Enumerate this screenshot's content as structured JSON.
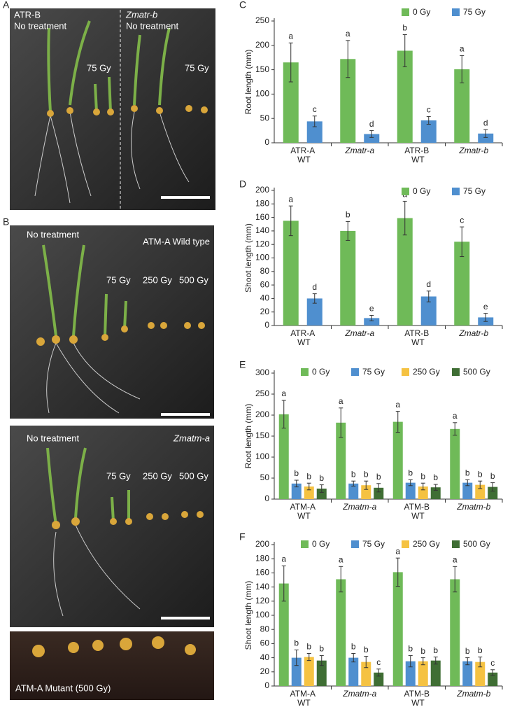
{
  "panels": {
    "A": {
      "letter": "A",
      "texts": [
        "ATR-B",
        "No treatment",
        "Zmatr-b",
        "No treatment",
        "75 Gy",
        "75 Gy"
      ]
    },
    "B": {
      "letter": "B",
      "texts": [
        "No treatment",
        "ATM-A Wild type",
        "75 Gy",
        "250 Gy",
        "500 Gy",
        "No treatment",
        "Zmatm-a",
        "75 Gy",
        "250 Gy",
        "500 Gy",
        "ATM-A Mutant (500 Gy)"
      ]
    }
  },
  "chart_data": [
    {
      "type": "bar",
      "panel": "C",
      "y_label": "Root length (mm)",
      "categories": [
        "ATR-A WT",
        "Zmatr-a",
        "ATR-B WT",
        "Zmatr-b"
      ],
      "category_style": [
        "normal",
        "italic",
        "normal",
        "italic"
      ],
      "ylim": [
        0,
        250
      ],
      "yticks": [
        0,
        50,
        100,
        150,
        200,
        250
      ],
      "series": [
        {
          "name": "0 Gy",
          "color": "#6fba58",
          "values": [
            165,
            172,
            189,
            151
          ],
          "errors": [
            40,
            38,
            33,
            28
          ],
          "letters": [
            "a",
            "a",
            "b",
            "a"
          ]
        },
        {
          "name": "75 Gy",
          "color": "#4f8fcf",
          "values": [
            44,
            18,
            46,
            19
          ],
          "errors": [
            11,
            7,
            8,
            8
          ],
          "letters": [
            "c",
            "d",
            "c",
            "d"
          ]
        }
      ]
    },
    {
      "type": "bar",
      "panel": "D",
      "y_label": "Shoot length (mm)",
      "categories": [
        "ATR-A WT",
        "Zmatr-a",
        "ATR-B WT",
        "Zmatr-b"
      ],
      "category_style": [
        "normal",
        "italic",
        "normal",
        "italic"
      ],
      "ylim": [
        0,
        200
      ],
      "yticks": [
        0,
        20,
        40,
        60,
        80,
        100,
        120,
        140,
        160,
        180,
        200
      ],
      "series": [
        {
          "name": "0 Gy",
          "color": "#6fba58",
          "values": [
            155,
            140,
            159,
            124
          ],
          "errors": [
            22,
            14,
            25,
            22
          ],
          "letters": [
            "a",
            "b",
            "a",
            "c"
          ]
        },
        {
          "name": "75 Gy",
          "color": "#4f8fcf",
          "values": [
            40,
            11,
            43,
            12
          ],
          "errors": [
            7,
            4,
            8,
            6
          ],
          "letters": [
            "d",
            "e",
            "d",
            "e"
          ]
        }
      ]
    },
    {
      "type": "bar",
      "panel": "E",
      "y_label": "Root length (mm)",
      "categories": [
        "ATM-A WT",
        "Zmatm-a",
        "ATM-B WT",
        "Zmatm-b"
      ],
      "category_style": [
        "normal",
        "italic",
        "normal",
        "italic"
      ],
      "ylim": [
        0,
        300
      ],
      "yticks": [
        0,
        50,
        100,
        150,
        200,
        250,
        300
      ],
      "series": [
        {
          "name": "0 Gy",
          "color": "#6fba58",
          "values": [
            202,
            182,
            184,
            167
          ],
          "errors": [
            33,
            35,
            25,
            15
          ],
          "letters": [
            "a",
            "a",
            "a",
            "a"
          ]
        },
        {
          "name": "75 Gy",
          "color": "#4f8fcf",
          "values": [
            37,
            37,
            39,
            39
          ],
          "errors": [
            8,
            6,
            7,
            7
          ],
          "letters": [
            "b",
            "b",
            "b",
            "b"
          ]
        },
        {
          "name": "250 Gy",
          "color": "#f5c242",
          "values": [
            30,
            33,
            30,
            34
          ],
          "errors": [
            8,
            10,
            8,
            9
          ],
          "letters": [
            "b",
            "b",
            "b",
            "b"
          ]
        },
        {
          "name": "500 Gy",
          "color": "#3f6e34",
          "values": [
            25,
            27,
            28,
            29
          ],
          "errors": [
            9,
            10,
            7,
            10
          ],
          "letters": [
            "b",
            "b",
            "b",
            "b"
          ]
        }
      ]
    },
    {
      "type": "bar",
      "panel": "F",
      "y_label": "Shoot length (mm)",
      "categories": [
        "ATM-A WT",
        "Zmatm-a",
        "ATM-B WT",
        "Zmatm-b"
      ],
      "category_style": [
        "normal",
        "italic",
        "normal",
        "italic"
      ],
      "ylim": [
        0,
        200
      ],
      "yticks": [
        0,
        20,
        40,
        60,
        80,
        100,
        120,
        140,
        160,
        180,
        200
      ],
      "series": [
        {
          "name": "0 Gy",
          "color": "#6fba58",
          "values": [
            145,
            151,
            161,
            151
          ],
          "errors": [
            25,
            18,
            20,
            18
          ],
          "letters": [
            "a",
            "a",
            "a",
            "a"
          ]
        },
        {
          "name": "75 Gy",
          "color": "#4f8fcf",
          "values": [
            40,
            40,
            35,
            35
          ],
          "errors": [
            11,
            6,
            8,
            5
          ],
          "letters": [
            "b",
            "b",
            "b",
            "b"
          ]
        },
        {
          "name": "250 Gy",
          "color": "#f5c242",
          "values": [
            41,
            34,
            35,
            34
          ],
          "errors": [
            5,
            8,
            5,
            7
          ],
          "letters": [
            "b",
            "b",
            "b",
            "b"
          ]
        },
        {
          "name": "500 Gy",
          "color": "#3f6e34",
          "values": [
            36,
            19,
            36,
            19
          ],
          "errors": [
            7,
            5,
            5,
            4
          ],
          "letters": [
            "b",
            "c",
            "b",
            "c"
          ]
        }
      ]
    }
  ]
}
